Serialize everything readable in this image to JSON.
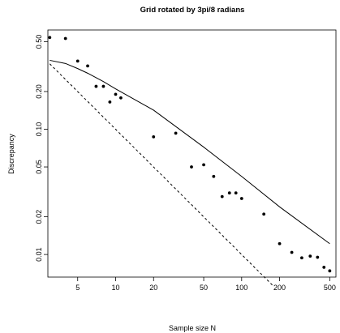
{
  "chart_data": {
    "type": "scatter",
    "title": "Grid rotated by 3pi/8 radians",
    "xlabel": "Sample size N",
    "ylabel": "Discrepancy",
    "xscale": "log",
    "yscale": "log",
    "xlim": [
      2.9,
      560
    ],
    "ylim": [
      0.0066,
      0.62
    ],
    "xticks": [
      5,
      10,
      20,
      50,
      100,
      200,
      500
    ],
    "xtick_labels": [
      "5",
      "10",
      "20",
      "50",
      "100",
      "200",
      "500"
    ],
    "yticks": [
      0.01,
      0.02,
      0.05,
      0.1,
      0.2,
      0.5
    ],
    "ytick_labels": [
      "0.01",
      "0.02",
      "0.05",
      "0.10",
      "0.20",
      "0.50"
    ],
    "grid": false,
    "series": [
      {
        "style": "points",
        "x": [
          3,
          4,
          5,
          6,
          7,
          8,
          9,
          10,
          11,
          20,
          30,
          40,
          50,
          60,
          70,
          80,
          90,
          100,
          150,
          200,
          250,
          300,
          350,
          400,
          450,
          500
        ],
        "y": [
          0.54,
          0.53,
          0.35,
          0.32,
          0.22,
          0.22,
          0.165,
          0.19,
          0.178,
          0.087,
          0.093,
          0.05,
          0.052,
          0.042,
          0.029,
          0.031,
          0.031,
          0.028,
          0.021,
          0.0122,
          0.0104,
          0.0094,
          0.0097,
          0.0095,
          0.0079,
          0.0074
        ]
      },
      {
        "style": "solid-line",
        "x": [
          3,
          4,
          5,
          6,
          8,
          10,
          20,
          50,
          100,
          200,
          500
        ],
        "y": [
          0.355,
          0.335,
          0.305,
          0.28,
          0.24,
          0.21,
          0.142,
          0.072,
          0.042,
          0.024,
          0.0122
        ]
      },
      {
        "style": "dashed-line",
        "x": [
          3,
          175
        ],
        "y": [
          0.333,
          0.00571
        ]
      }
    ]
  }
}
